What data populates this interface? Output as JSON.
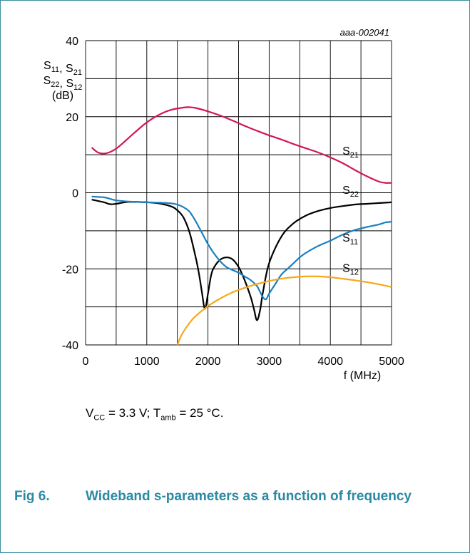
{
  "figure": {
    "doc_id": "aaa-002041",
    "number": "Fig 6.",
    "title": "Wideband s-parameters as a function of frequency",
    "conditions": {
      "vcc_sym": "V",
      "vcc_sub": "CC",
      "vcc_val": " = 3.3 V; ",
      "tamb_sym": "T",
      "tamb_sub": "amb",
      "tamb_val": " = 25 °C."
    }
  },
  "axes": {
    "y_label_lines": [
      {
        "parts": [
          [
            "S",
            "11"
          ],
          [
            ", S",
            "21"
          ]
        ]
      },
      {
        "parts": [
          [
            "S",
            "22"
          ],
          [
            ", S",
            "12"
          ]
        ]
      },
      {
        "parts": [
          [
            "(dB)",
            ""
          ]
        ]
      }
    ],
    "x_label": "f (MHz)",
    "x_ticks": [
      "0",
      "1000",
      "2000",
      "3000",
      "4000",
      "5000"
    ],
    "y_ticks": [
      "40",
      "20",
      "0",
      "-20",
      "-40"
    ]
  },
  "chart_data": {
    "type": "line",
    "title": "",
    "xlabel": "f (MHz)",
    "ylabel": "S11, S21 S22, S12 (dB)",
    "xlim": [
      0,
      5000
    ],
    "ylim": [
      -40,
      40
    ],
    "x_grid_step": 500,
    "y_grid_step": 10,
    "grid": true,
    "series": [
      {
        "name": "S21",
        "sub": "21",
        "color": "#d4145a",
        "x": [
          100,
          200,
          300,
          400,
          500,
          600,
          800,
          1000,
          1200,
          1400,
          1600,
          1700,
          1800,
          2000,
          2200,
          2400,
          2600,
          2800,
          3000,
          3200,
          3400,
          3600,
          3800,
          4000,
          4200,
          4400,
          4600,
          4800,
          4900,
          5000
        ],
        "y": [
          11.9,
          10.6,
          10.3,
          10.7,
          11.6,
          12.9,
          15.8,
          18.5,
          20.5,
          21.8,
          22.4,
          22.5,
          22.3,
          21.4,
          20.3,
          19.0,
          17.6,
          16.3,
          15.1,
          14.0,
          12.8,
          11.7,
          10.6,
          9.3,
          7.8,
          6.0,
          4.3,
          2.9,
          2.6,
          2.6
        ]
      },
      {
        "name": "S22",
        "sub": "22",
        "color": "#000000",
        "x": [
          100,
          300,
          400,
          500,
          700,
          1000,
          1200,
          1400,
          1500,
          1600,
          1700,
          1800,
          1850,
          1900,
          1950,
          2000,
          2050,
          2100,
          2200,
          2300,
          2400,
          2500,
          2600,
          2700,
          2750,
          2800,
          2850,
          2900,
          3000,
          3200,
          3400,
          3600,
          3800,
          4000,
          4200,
          4400,
          4600,
          4800,
          5000
        ],
        "y": [
          -1.8,
          -2.5,
          -3.0,
          -2.9,
          -2.4,
          -2.5,
          -2.8,
          -3.6,
          -4.6,
          -6.5,
          -10.5,
          -17.0,
          -21.0,
          -26.0,
          -30.5,
          -26.5,
          -21.8,
          -19.6,
          -17.6,
          -17.0,
          -17.5,
          -19.5,
          -23.0,
          -27.5,
          -30.5,
          -33.5,
          -31.0,
          -26.0,
          -18.5,
          -11.5,
          -8.0,
          -6.0,
          -4.8,
          -4.0,
          -3.5,
          -3.1,
          -2.9,
          -2.7,
          -2.5
        ]
      },
      {
        "name": "S11",
        "sub": "11",
        "color": "#1a7fc0",
        "x": [
          100,
          300,
          400,
          500,
          700,
          1000,
          1200,
          1400,
          1500,
          1600,
          1700,
          1800,
          1900,
          2000,
          2100,
          2200,
          2300,
          2400,
          2500,
          2600,
          2700,
          2800,
          2850,
          2900,
          2950,
          3000,
          3100,
          3200,
          3300,
          3400,
          3500,
          3600,
          3800,
          4000,
          4200,
          4400,
          4600,
          4800,
          4900,
          5000
        ],
        "y": [
          -1.0,
          -1.2,
          -1.6,
          -2.0,
          -2.3,
          -2.5,
          -2.6,
          -2.8,
          -3.1,
          -3.8,
          -5.0,
          -7.5,
          -10.5,
          -13.5,
          -16.0,
          -18.0,
          -19.5,
          -20.3,
          -21.0,
          -22.0,
          -23.0,
          -24.5,
          -26.0,
          -27.5,
          -28.0,
          -26.5,
          -24.0,
          -21.5,
          -20.0,
          -18.5,
          -17.0,
          -15.8,
          -14.0,
          -12.6,
          -11.0,
          -9.8,
          -9.0,
          -8.3,
          -7.8,
          -7.6
        ]
      },
      {
        "name": "S12",
        "sub": "12",
        "color": "#f5a81c",
        "x": [
          1500,
          1550,
          1600,
          1700,
          1800,
          2000,
          2200,
          2400,
          2600,
          2800,
          3000,
          3200,
          3400,
          3600,
          3800,
          4000,
          4200,
          4400,
          4600,
          4800,
          5000
        ],
        "y": [
          -40.0,
          -38.0,
          -36.5,
          -34.2,
          -32.4,
          -29.8,
          -27.8,
          -26.2,
          -25.0,
          -24.0,
          -23.2,
          -22.6,
          -22.2,
          -22.0,
          -22.0,
          -22.2,
          -22.6,
          -23.0,
          -23.5,
          -24.1,
          -24.8
        ]
      }
    ],
    "curve_labels": [
      {
        "series": "S21",
        "sub": "21",
        "x": 4150,
        "y": 10.0
      },
      {
        "series": "S22",
        "sub": "22",
        "x": 4150,
        "y": -0.3
      },
      {
        "series": "S11",
        "sub": "11",
        "x": 4150,
        "y": -12.8
      },
      {
        "series": "S12",
        "sub": "12",
        "x": 4150,
        "y": -20.8
      }
    ]
  }
}
